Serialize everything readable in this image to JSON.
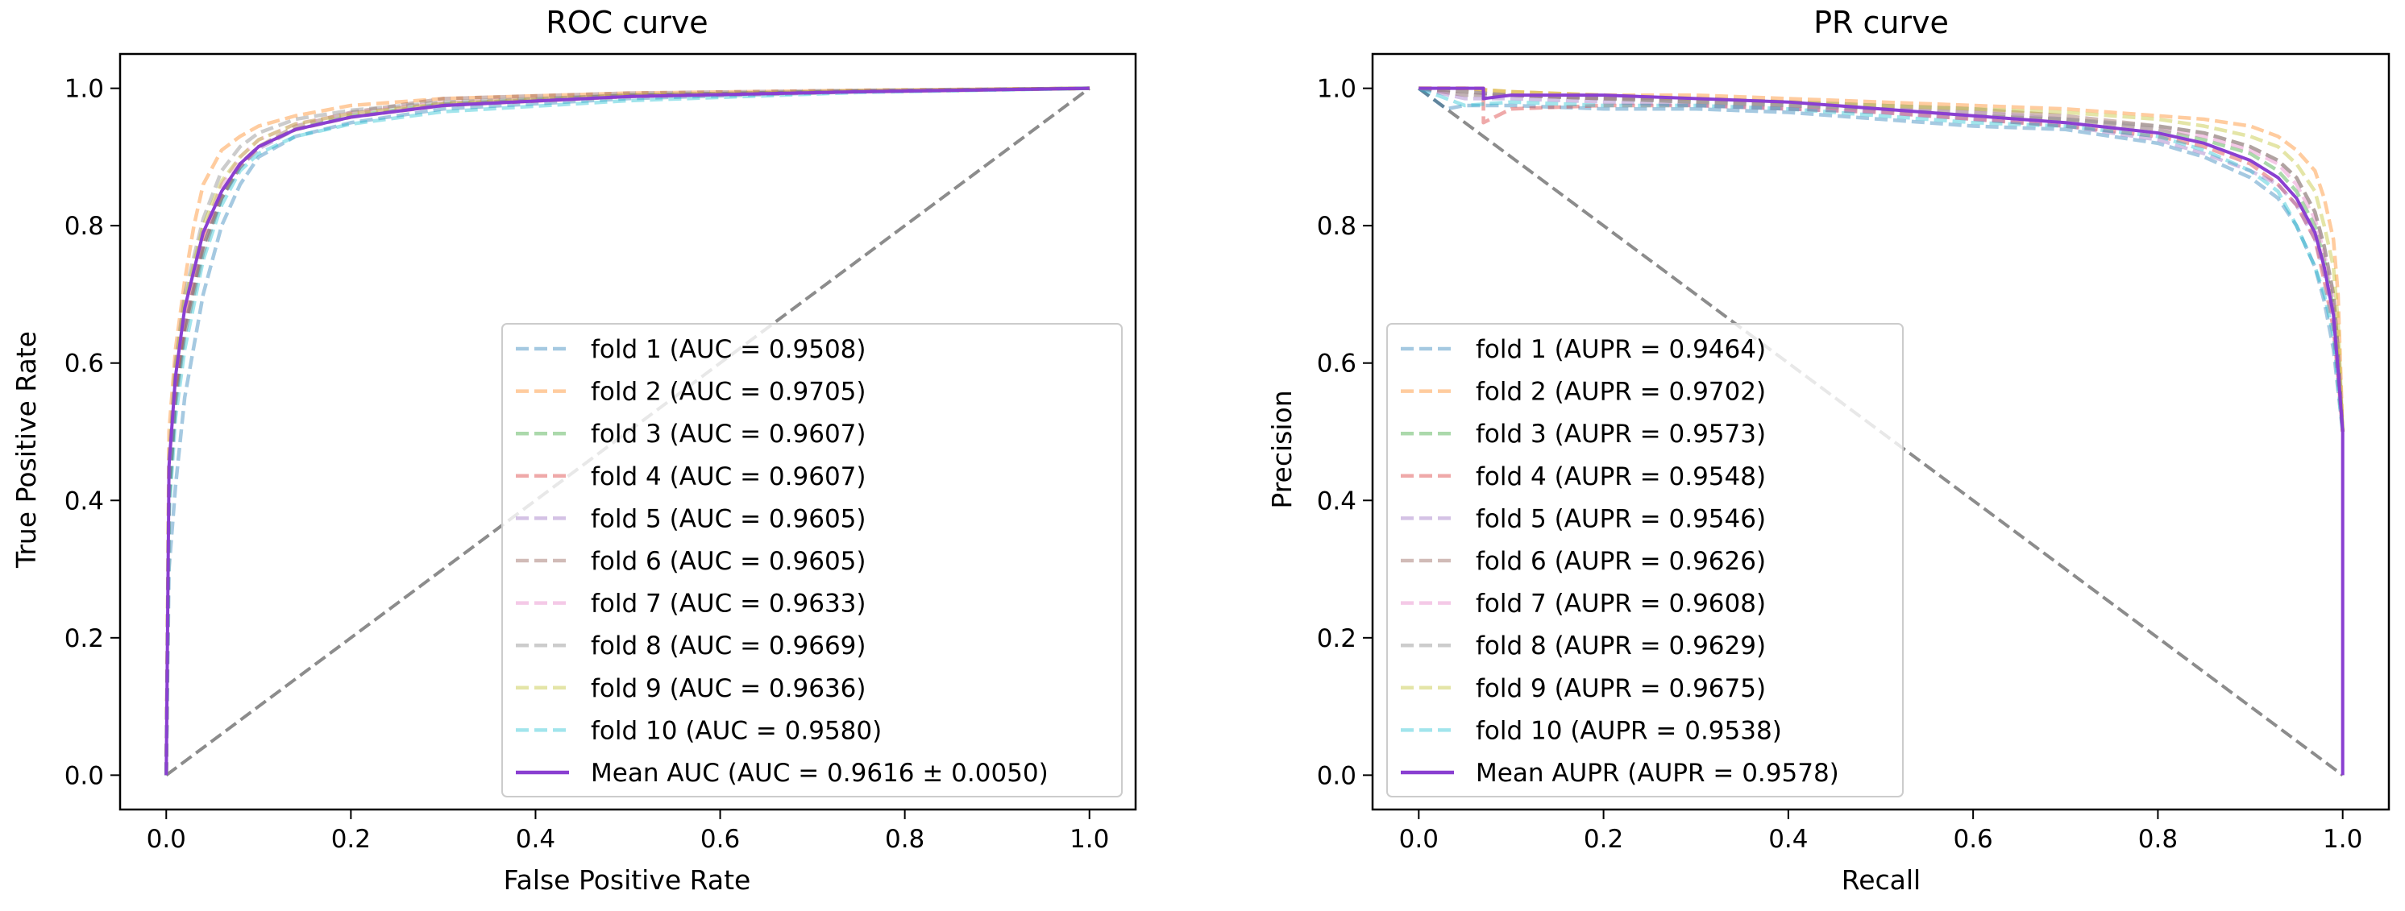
{
  "chart_data": [
    {
      "type": "line",
      "title": "ROC curve",
      "xlabel": "False Positive Rate",
      "ylabel": "True Positive Rate",
      "xlim": [
        -0.05,
        1.05
      ],
      "ylim": [
        -0.05,
        1.05
      ],
      "xticks": [
        "0.0",
        "0.2",
        "0.4",
        "0.6",
        "0.8",
        "1.0"
      ],
      "yticks": [
        "0.0",
        "0.2",
        "0.4",
        "0.6",
        "0.8",
        "1.0"
      ],
      "legend_position": "lower-right",
      "diagonal": {
        "x": [
          0,
          1
        ],
        "y": [
          0,
          1
        ],
        "color": "#8c8c8c",
        "style": "dashed"
      },
      "series": [
        {
          "name": "fold 1 (AUC = 0.9508)",
          "color": "#1f77b4",
          "style": "dashed",
          "x": [
            0,
            0.003,
            0.01,
            0.02,
            0.04,
            0.06,
            0.08,
            0.1,
            0.14,
            0.2,
            0.3,
            0.5,
            0.75,
            1
          ],
          "y": [
            0,
            0.3,
            0.42,
            0.55,
            0.7,
            0.8,
            0.86,
            0.9,
            0.93,
            0.95,
            0.97,
            0.985,
            0.995,
            1
          ]
        },
        {
          "name": "fold 2 (AUC = 0.9705)",
          "color": "#ff7f0e",
          "style": "dashed",
          "x": [
            0,
            0.003,
            0.01,
            0.02,
            0.03,
            0.04,
            0.06,
            0.08,
            0.1,
            0.14,
            0.2,
            0.3,
            0.5,
            0.75,
            1
          ],
          "y": [
            0,
            0.5,
            0.62,
            0.72,
            0.8,
            0.86,
            0.91,
            0.93,
            0.945,
            0.96,
            0.975,
            0.985,
            0.993,
            0.997,
            1
          ]
        },
        {
          "name": "fold 3 (AUC = 0.9607)",
          "color": "#2ca02c",
          "style": "dashed",
          "x": [
            0,
            0.003,
            0.01,
            0.02,
            0.04,
            0.06,
            0.08,
            0.1,
            0.14,
            0.2,
            0.3,
            0.5,
            0.75,
            1
          ],
          "y": [
            0,
            0.4,
            0.55,
            0.65,
            0.77,
            0.84,
            0.89,
            0.915,
            0.94,
            0.96,
            0.977,
            0.99,
            0.996,
            1
          ]
        },
        {
          "name": "fold 4 (AUC = 0.9607)",
          "color": "#d62728",
          "style": "dashed",
          "x": [
            0,
            0.003,
            0.01,
            0.02,
            0.04,
            0.06,
            0.08,
            0.1,
            0.14,
            0.2,
            0.3,
            0.5,
            0.75,
            1
          ],
          "y": [
            0,
            0.42,
            0.56,
            0.66,
            0.78,
            0.85,
            0.89,
            0.915,
            0.94,
            0.958,
            0.975,
            0.988,
            0.995,
            1
          ]
        },
        {
          "name": "fold 5 (AUC = 0.9605)",
          "color": "#9467bd",
          "style": "dashed",
          "x": [
            0,
            0.003,
            0.01,
            0.02,
            0.04,
            0.06,
            0.08,
            0.1,
            0.14,
            0.2,
            0.3,
            0.5,
            0.75,
            1
          ],
          "y": [
            0,
            0.41,
            0.55,
            0.65,
            0.77,
            0.84,
            0.885,
            0.912,
            0.94,
            0.958,
            0.976,
            0.989,
            0.996,
            1
          ]
        },
        {
          "name": "fold 6 (AUC = 0.9605)",
          "color": "#8c564b",
          "style": "dashed",
          "x": [
            0,
            0.003,
            0.01,
            0.02,
            0.04,
            0.06,
            0.08,
            0.1,
            0.14,
            0.2,
            0.3,
            0.5,
            0.75,
            1
          ],
          "y": [
            0,
            0.4,
            0.54,
            0.64,
            0.76,
            0.84,
            0.885,
            0.915,
            0.945,
            0.965,
            0.985,
            0.993,
            0.997,
            1
          ]
        },
        {
          "name": "fold 7 (AUC = 0.9633)",
          "color": "#e377c2",
          "style": "dashed",
          "x": [
            0,
            0.003,
            0.01,
            0.02,
            0.04,
            0.06,
            0.08,
            0.1,
            0.14,
            0.2,
            0.3,
            0.5,
            0.75,
            1
          ],
          "y": [
            0,
            0.44,
            0.58,
            0.68,
            0.79,
            0.86,
            0.9,
            0.925,
            0.948,
            0.964,
            0.979,
            0.99,
            0.996,
            1
          ]
        },
        {
          "name": "fold 8 (AUC = 0.9669)",
          "color": "#7f7f7f",
          "style": "dashed",
          "x": [
            0,
            0.003,
            0.01,
            0.02,
            0.04,
            0.06,
            0.08,
            0.1,
            0.14,
            0.2,
            0.3,
            0.5,
            0.75,
            1
          ],
          "y": [
            0,
            0.46,
            0.6,
            0.7,
            0.81,
            0.88,
            0.915,
            0.935,
            0.955,
            0.968,
            0.98,
            0.99,
            0.996,
            1
          ]
        },
        {
          "name": "fold 9 (AUC = 0.9636)",
          "color": "#bcbd22",
          "style": "dashed",
          "x": [
            0,
            0.003,
            0.01,
            0.02,
            0.04,
            0.06,
            0.08,
            0.1,
            0.14,
            0.2,
            0.3,
            0.5,
            0.75,
            1
          ],
          "y": [
            0,
            0.45,
            0.59,
            0.69,
            0.8,
            0.865,
            0.9,
            0.925,
            0.948,
            0.963,
            0.978,
            0.99,
            0.996,
            1
          ]
        },
        {
          "name": "fold 10 (AUC = 0.9580)",
          "color": "#17becf",
          "style": "dashed",
          "x": [
            0,
            0.003,
            0.01,
            0.02,
            0.04,
            0.06,
            0.08,
            0.1,
            0.14,
            0.2,
            0.3,
            0.5,
            0.75,
            1
          ],
          "y": [
            0,
            0.38,
            0.52,
            0.62,
            0.75,
            0.83,
            0.88,
            0.905,
            0.93,
            0.948,
            0.966,
            0.982,
            0.994,
            1
          ]
        },
        {
          "name": "Mean AUC (AUC = 0.9616 ± 0.0050)",
          "color": "#8a3fd1",
          "style": "solid",
          "x": [
            0,
            0.003,
            0.01,
            0.02,
            0.04,
            0.06,
            0.08,
            0.1,
            0.14,
            0.2,
            0.3,
            0.5,
            0.75,
            1
          ],
          "y": [
            0,
            0.45,
            0.58,
            0.68,
            0.79,
            0.85,
            0.89,
            0.915,
            0.94,
            0.958,
            0.975,
            0.988,
            0.995,
            1
          ]
        }
      ]
    },
    {
      "type": "line",
      "title": "PR curve",
      "xlabel": "Recall",
      "ylabel": "Precision",
      "xlim": [
        -0.05,
        1.05
      ],
      "ylim": [
        -0.05,
        1.05
      ],
      "xticks": [
        "0.0",
        "0.2",
        "0.4",
        "0.6",
        "0.8",
        "1.0"
      ],
      "yticks": [
        "0.0",
        "0.2",
        "0.4",
        "0.6",
        "0.8",
        "1.0"
      ],
      "legend_position": "lower-left",
      "diagonal": {
        "x": [
          0,
          1
        ],
        "y": [
          1,
          0
        ],
        "color": "#8c8c8c",
        "style": "dashed"
      },
      "series": [
        {
          "name": "fold 1 (AUPR = 0.9464)",
          "color": "#1f77b4",
          "style": "dashed",
          "x": [
            0,
            0.03,
            0.05,
            0.1,
            0.2,
            0.3,
            0.4,
            0.5,
            0.6,
            0.7,
            0.8,
            0.85,
            0.9,
            0.93,
            0.95,
            0.97,
            0.98,
            0.99,
            0.995,
            1
          ],
          "y": [
            1,
            0.97,
            0.975,
            0.975,
            0.97,
            0.97,
            0.965,
            0.955,
            0.945,
            0.94,
            0.92,
            0.9,
            0.87,
            0.84,
            0.8,
            0.74,
            0.69,
            0.62,
            0.56,
            0.5
          ]
        },
        {
          "name": "fold 2 (AUPR = 0.9702)",
          "color": "#ff7f0e",
          "style": "dashed",
          "x": [
            0,
            0.05,
            0.1,
            0.2,
            0.3,
            0.4,
            0.5,
            0.6,
            0.7,
            0.8,
            0.85,
            0.9,
            0.93,
            0.95,
            0.97,
            0.98,
            0.99,
            0.995,
            1
          ],
          "y": [
            1,
            1,
            0.995,
            0.99,
            0.99,
            0.985,
            0.98,
            0.975,
            0.97,
            0.96,
            0.955,
            0.945,
            0.93,
            0.91,
            0.88,
            0.84,
            0.78,
            0.7,
            0.5
          ]
        },
        {
          "name": "fold 3 (AUPR = 0.9573)",
          "color": "#2ca02c",
          "style": "dashed",
          "x": [
            0,
            0.05,
            0.1,
            0.2,
            0.3,
            0.4,
            0.5,
            0.6,
            0.7,
            0.8,
            0.85,
            0.9,
            0.93,
            0.95,
            0.97,
            0.98,
            0.99,
            0.995,
            1
          ],
          "y": [
            1,
            0.99,
            0.99,
            0.985,
            0.98,
            0.975,
            0.97,
            0.96,
            0.955,
            0.94,
            0.925,
            0.905,
            0.88,
            0.85,
            0.8,
            0.75,
            0.68,
            0.6,
            0.5
          ]
        },
        {
          "name": "fold 4 (AUPR = 0.9548)",
          "color": "#d62728",
          "style": "dashed",
          "x": [
            0,
            0.07,
            0.07,
            0.1,
            0.2,
            0.3,
            0.4,
            0.5,
            0.6,
            0.7,
            0.8,
            0.85,
            0.9,
            0.93,
            0.95,
            0.97,
            0.98,
            0.99,
            0.995,
            1
          ],
          "y": [
            1,
            1,
            0.95,
            0.97,
            0.975,
            0.975,
            0.97,
            0.965,
            0.955,
            0.945,
            0.93,
            0.915,
            0.89,
            0.86,
            0.83,
            0.78,
            0.72,
            0.65,
            0.58,
            0.5
          ]
        },
        {
          "name": "fold 5 (AUPR = 0.9546)",
          "color": "#9467bd",
          "style": "dashed",
          "x": [
            0,
            0.05,
            0.1,
            0.2,
            0.3,
            0.4,
            0.5,
            0.6,
            0.7,
            0.8,
            0.85,
            0.9,
            0.93,
            0.95,
            0.97,
            0.98,
            0.99,
            0.995,
            1
          ],
          "y": [
            1,
            0.985,
            0.985,
            0.98,
            0.975,
            0.97,
            0.965,
            0.955,
            0.945,
            0.925,
            0.905,
            0.88,
            0.86,
            0.83,
            0.78,
            0.73,
            0.66,
            0.59,
            0.5
          ]
        },
        {
          "name": "fold 6 (AUPR = 0.9626)",
          "color": "#8c564b",
          "style": "dashed",
          "x": [
            0,
            0.05,
            0.1,
            0.2,
            0.3,
            0.4,
            0.5,
            0.6,
            0.7,
            0.8,
            0.85,
            0.9,
            0.93,
            0.95,
            0.97,
            0.98,
            0.99,
            0.995,
            1
          ],
          "y": [
            1,
            0.995,
            0.99,
            0.985,
            0.985,
            0.98,
            0.975,
            0.97,
            0.96,
            0.945,
            0.935,
            0.915,
            0.895,
            0.87,
            0.82,
            0.77,
            0.7,
            0.62,
            0.5
          ]
        },
        {
          "name": "fold 7 (AUPR = 0.9608)",
          "color": "#e377c2",
          "style": "dashed",
          "x": [
            0,
            0.05,
            0.1,
            0.2,
            0.3,
            0.4,
            0.5,
            0.6,
            0.7,
            0.8,
            0.85,
            0.9,
            0.93,
            0.95,
            0.97,
            0.98,
            0.99,
            0.995,
            1
          ],
          "y": [
            1,
            0.99,
            0.99,
            0.985,
            0.98,
            0.975,
            0.97,
            0.965,
            0.955,
            0.94,
            0.93,
            0.91,
            0.89,
            0.86,
            0.81,
            0.76,
            0.69,
            0.61,
            0.5
          ]
        },
        {
          "name": "fold 8 (AUPR = 0.9629)",
          "color": "#7f7f7f",
          "style": "dashed",
          "x": [
            0,
            0.05,
            0.1,
            0.2,
            0.3,
            0.4,
            0.5,
            0.6,
            0.7,
            0.8,
            0.85,
            0.9,
            0.93,
            0.95,
            0.97,
            0.98,
            0.99,
            0.995,
            1
          ],
          "y": [
            1,
            0.995,
            0.99,
            0.985,
            0.98,
            0.975,
            0.97,
            0.965,
            0.955,
            0.945,
            0.935,
            0.915,
            0.895,
            0.87,
            0.82,
            0.77,
            0.7,
            0.62,
            0.5
          ]
        },
        {
          "name": "fold 9 (AUPR = 0.9675)",
          "color": "#bcbd22",
          "style": "dashed",
          "x": [
            0,
            0.05,
            0.1,
            0.2,
            0.3,
            0.4,
            0.5,
            0.6,
            0.7,
            0.8,
            0.85,
            0.9,
            0.93,
            0.95,
            0.97,
            0.98,
            0.99,
            0.995,
            1
          ],
          "y": [
            1,
            1,
            0.995,
            0.99,
            0.985,
            0.98,
            0.975,
            0.97,
            0.965,
            0.955,
            0.945,
            0.93,
            0.915,
            0.89,
            0.85,
            0.8,
            0.74,
            0.66,
            0.5
          ]
        },
        {
          "name": "fold 10 (AUPR = 0.9538)",
          "color": "#17becf",
          "style": "dashed",
          "x": [
            0,
            0.05,
            0.1,
            0.2,
            0.3,
            0.4,
            0.5,
            0.6,
            0.7,
            0.8,
            0.85,
            0.9,
            0.93,
            0.95,
            0.97,
            0.98,
            0.99,
            0.995,
            1
          ],
          "y": [
            1,
            0.975,
            0.98,
            0.975,
            0.975,
            0.97,
            0.96,
            0.95,
            0.945,
            0.93,
            0.91,
            0.88,
            0.85,
            0.8,
            0.74,
            0.7,
            0.64,
            0.57,
            0.5
          ]
        },
        {
          "name": "Mean AUPR (AUPR = 0.9578)",
          "color": "#8a3fd1",
          "style": "solid",
          "x": [
            0,
            0.07,
            0.07,
            0.1,
            0.2,
            0.3,
            0.4,
            0.5,
            0.6,
            0.7,
            0.8,
            0.85,
            0.9,
            0.93,
            0.95,
            0.97,
            0.98,
            0.99,
            0.995,
            1,
            1
          ],
          "y": [
            1,
            1,
            0.985,
            0.99,
            0.99,
            0.985,
            0.98,
            0.97,
            0.96,
            0.95,
            0.935,
            0.92,
            0.895,
            0.87,
            0.84,
            0.79,
            0.74,
            0.67,
            0.59,
            0.5,
            0.0
          ]
        }
      ]
    }
  ]
}
